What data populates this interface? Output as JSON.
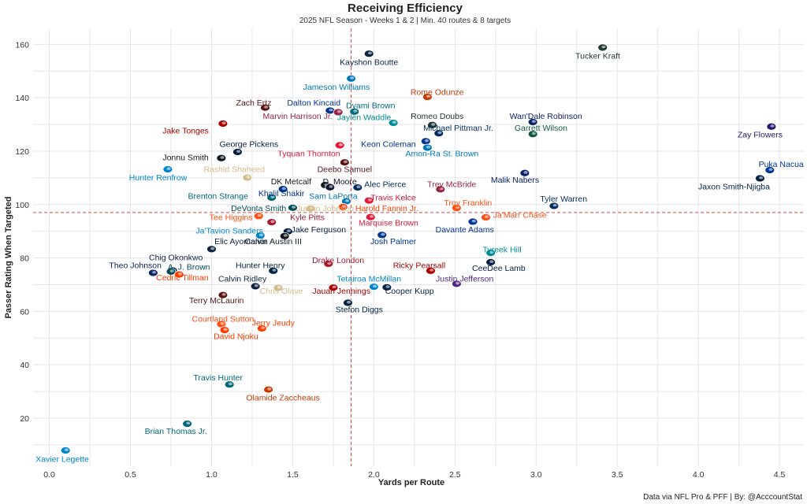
{
  "chart_data": {
    "type": "scatter",
    "title": "Receiving Efficiency",
    "subtitle": "2025 NFL Season - Weeks 1 & 2 | Min. 40 routes & 8 targets",
    "xlabel": "Yards per Route",
    "ylabel": "Passer Rating When Targeted",
    "caption": "Data via NFL Pro & PFF | By: @AcccountStat",
    "xlim": [
      -0.1,
      4.65
    ],
    "ylim": [
      2,
      166
    ],
    "xticks": [
      0.0,
      0.5,
      1.0,
      1.5,
      2.0,
      2.5,
      3.0,
      3.5,
      4.0,
      4.5
    ],
    "xtick_labels": [
      "0.0",
      "0.5",
      "1.0",
      "1.5",
      "2.0",
      "2.5",
      "3.0",
      "3.5",
      "4.0",
      "4.5"
    ],
    "yticks": [
      20,
      40,
      60,
      80,
      100,
      120,
      140,
      160
    ],
    "ytick_labels": [
      "20",
      "40",
      "60",
      "80",
      "100",
      "120",
      "140",
      "160"
    ],
    "grid": true,
    "reference_lines": {
      "x": 1.86,
      "y": 97
    },
    "points": [
      {
        "name": "Tucker Kraft",
        "x": 3.41,
        "y": 158.8,
        "color": "#203731",
        "label_x": 3.38,
        "label_y": 155.8
      },
      {
        "name": "Kayshon Boutte",
        "x": 1.97,
        "y": 156.5,
        "color": "#0c2340",
        "label_x": 1.97,
        "label_y": 153.5
      },
      {
        "name": "Jameson Williams",
        "x": 1.86,
        "y": 147.2,
        "color": "#0076b6",
        "label_x": 1.77,
        "label_y": 144.2
      },
      {
        "name": "Rome Odunze",
        "x": 2.33,
        "y": 140.3,
        "color": "#c83803",
        "label_x": 2.39,
        "label_y": 142.3
      },
      {
        "name": "Zach Ertz",
        "x": 1.33,
        "y": 136.3,
        "color": "#5a1414",
        "label_x": 1.26,
        "label_y": 138.3
      },
      {
        "name": "Dalton Kincaid",
        "x": 1.73,
        "y": 135.2,
        "color": "#00338d",
        "label_x": 1.63,
        "label_y": 138.3
      },
      {
        "name": "Dyami Brown",
        "x": 1.88,
        "y": 134.8,
        "color": "#006778",
        "label_x": 1.98,
        "label_y": 137.3
      },
      {
        "name": "Marvin Harrison Jr.",
        "x": 1.78,
        "y": 134.6,
        "color": "#97233f",
        "label_x": 1.53,
        "label_y": 133.3
      },
      {
        "name": "Jaylen Waddle",
        "x": 2.12,
        "y": 130.6,
        "color": "#008e97",
        "label_x": 1.94,
        "label_y": 132.8
      },
      {
        "name": "Romeo Doubs",
        "x": 2.36,
        "y": 129.8,
        "color": "#203731",
        "label_x": 2.39,
        "label_y": 133.3
      },
      {
        "name": "Wan'Dale Robinson",
        "x": 2.98,
        "y": 130.9,
        "color": "#0b2265",
        "label_x": 3.06,
        "label_y": 133.3
      },
      {
        "name": "Michael Pittman Jr.",
        "x": 2.4,
        "y": 126.7,
        "color": "#002c5f",
        "label_x": 2.52,
        "label_y": 128.8
      },
      {
        "name": "Garrett Wilson",
        "x": 2.98,
        "y": 126.4,
        "color": "#125740",
        "label_x": 3.03,
        "label_y": 128.8
      },
      {
        "name": "Jake Tonges",
        "x": 1.07,
        "y": 130.3,
        "color": "#aa0000",
        "label_x": 0.84,
        "label_y": 127.8
      },
      {
        "name": "Tyquan Thornton",
        "x": 1.79,
        "y": 122.2,
        "color": "#e31837",
        "label_x": 1.6,
        "label_y": 119.3
      },
      {
        "name": "Keon Coleman",
        "x": 2.32,
        "y": 123.7,
        "color": "#00338d",
        "label_x": 2.09,
        "label_y": 122.8
      },
      {
        "name": "Amon-Ra St. Brown",
        "x": 2.33,
        "y": 121.3,
        "color": "#0076b6",
        "label_x": 2.42,
        "label_y": 119.3
      },
      {
        "name": "Zay Flowers",
        "x": 4.45,
        "y": 129.2,
        "color": "#241773",
        "label_x": 4.38,
        "label_y": 126.3
      },
      {
        "name": "George Pickens",
        "x": 1.16,
        "y": 119.7,
        "color": "#041e42",
        "label_x": 1.23,
        "label_y": 122.8
      },
      {
        "name": "Jonnu Smith",
        "x": 1.06,
        "y": 117.4,
        "color": "#101820",
        "label_x": 0.84,
        "label_y": 117.8
      },
      {
        "name": "Hunter Renfrow",
        "x": 0.73,
        "y": 113.2,
        "color": "#0085ca",
        "label_x": 0.67,
        "label_y": 110.3
      },
      {
        "name": "Rashid Shaheed",
        "x": 1.22,
        "y": 110.1,
        "color": "#d3bc8d",
        "label_x": 1.14,
        "label_y": 113.3
      },
      {
        "name": "Deebo Samuel",
        "x": 1.82,
        "y": 115.8,
        "color": "#5a1414",
        "label_x": 1.82,
        "label_y": 113.3
      },
      {
        "name": "Puka Nacua",
        "x": 4.44,
        "y": 112.9,
        "color": "#003594",
        "label_x": 4.51,
        "label_y": 115.3
      },
      {
        "name": "Jaxon Smith-Njigba",
        "x": 4.38,
        "y": 109.8,
        "color": "#002244",
        "label_x": 4.22,
        "label_y": 106.8
      },
      {
        "name": "Malik Nabers",
        "x": 2.93,
        "y": 111.8,
        "color": "#0b2265",
        "label_x": 2.87,
        "label_y": 109.3
      },
      {
        "name": "DK Metcalf",
        "x": 1.7,
        "y": 107.3,
        "color": "#101820",
        "label_x": 1.49,
        "label_y": 108.8
      },
      {
        "name": "D. Moore",
        "x": 1.73,
        "y": 106.5,
        "color": "#0b162a",
        "label_x": 1.79,
        "label_y": 108.8
      },
      {
        "name": "Alec Pierce",
        "x": 1.9,
        "y": 106.4,
        "color": "#002c5f",
        "label_x": 2.07,
        "label_y": 107.8
      },
      {
        "name": "Trey McBride",
        "x": 2.41,
        "y": 105.7,
        "color": "#97233f",
        "label_x": 2.48,
        "label_y": 107.8
      },
      {
        "name": "Khalil Shakir",
        "x": 1.44,
        "y": 105.8,
        "color": "#00338d",
        "label_x": 1.43,
        "label_y": 104.3
      },
      {
        "name": "Brenton Strange",
        "x": 1.37,
        "y": 102.6,
        "color": "#006778",
        "label_x": 1.04,
        "label_y": 103.3
      },
      {
        "name": "Sam LaPorta",
        "x": 1.83,
        "y": 101.2,
        "color": "#0076b6",
        "label_x": 1.75,
        "label_y": 103.3
      },
      {
        "name": "Travis Kelce",
        "x": 1.97,
        "y": 101.5,
        "color": "#e31837",
        "label_x": 2.12,
        "label_y": 102.8
      },
      {
        "name": "Tyler Warren",
        "x": 3.11,
        "y": 99.5,
        "color": "#002c5f",
        "label_x": 3.17,
        "label_y": 102.3
      },
      {
        "name": "Troy Franklin",
        "x": 2.51,
        "y": 98.7,
        "color": "#fb4f14",
        "label_x": 2.58,
        "label_y": 100.8
      },
      {
        "name": "DeVonta Smith",
        "x": 1.5,
        "y": 98.8,
        "color": "#004c54",
        "label_x": 1.29,
        "label_y": 98.8
      },
      {
        "name": "Juwan Johnson",
        "x": 1.61,
        "y": 98.5,
        "color": "#d3bc8d",
        "label_x": 1.7,
        "label_y": 98.8
      },
      {
        "name": "Harold Fannin Jr.",
        "x": 1.81,
        "y": 99.1,
        "color": "#ff3c00",
        "label_x": 2.08,
        "label_y": 98.8
      },
      {
        "name": "Tee Higgins",
        "x": 1.29,
        "y": 95.7,
        "color": "#fb4f14",
        "label_x": 1.12,
        "label_y": 95.3
      },
      {
        "name": "Kyle Pitts",
        "x": 1.37,
        "y": 93.4,
        "color": "#a71930",
        "label_x": 1.59,
        "label_y": 95.3
      },
      {
        "name": "Ja'Marr Chase",
        "x": 2.69,
        "y": 95.2,
        "color": "#fb4f14",
        "label_x": 2.9,
        "label_y": 96.3
      },
      {
        "name": "Marquise Brown",
        "x": 1.98,
        "y": 95.3,
        "color": "#e31837",
        "label_x": 2.09,
        "label_y": 93.3
      },
      {
        "name": "Davante Adams",
        "x": 2.61,
        "y": 93.6,
        "color": "#003594",
        "label_x": 2.56,
        "label_y": 90.8
      },
      {
        "name": "Jake Ferguson",
        "x": 1.47,
        "y": 89.9,
        "color": "#041e42",
        "label_x": 1.66,
        "label_y": 90.8
      },
      {
        "name": "Ja'Tavion Sanders",
        "x": 1.3,
        "y": 88.4,
        "color": "#0085ca",
        "label_x": 1.11,
        "label_y": 90.3
      },
      {
        "name": "Calvin Austin III",
        "x": 1.45,
        "y": 88.2,
        "color": "#101820",
        "label_x": 1.38,
        "label_y": 86.3
      },
      {
        "name": "Elic Ayomanor",
        "x": 1.0,
        "y": 83.3,
        "color": "#0c2340",
        "label_x": 1.18,
        "label_y": 86.3
      },
      {
        "name": "Josh Palmer",
        "x": 2.05,
        "y": 88.6,
        "color": "#00338d",
        "label_x": 2.12,
        "label_y": 86.3
      },
      {
        "name": "Tyreek Hill",
        "x": 2.72,
        "y": 81.9,
        "color": "#008e97",
        "label_x": 2.79,
        "label_y": 83.3
      },
      {
        "name": "Chig Okonkwo",
        "x": 0.76,
        "y": 75.3,
        "color": "#0c2340",
        "label_x": 0.78,
        "label_y": 80.3
      },
      {
        "name": "Drake London",
        "x": 1.72,
        "y": 77.8,
        "color": "#a71930",
        "label_x": 1.78,
        "label_y": 79.3
      },
      {
        "name": "Hunter Henry",
        "x": 1.38,
        "y": 75.2,
        "color": "#002244",
        "label_x": 1.3,
        "label_y": 77.3
      },
      {
        "name": "Ricky Pearsall",
        "x": 2.35,
        "y": 75.2,
        "color": "#aa0000",
        "label_x": 2.28,
        "label_y": 77.3
      },
      {
        "name": "CeeDee Lamb",
        "x": 2.72,
        "y": 78.4,
        "color": "#041e42",
        "label_x": 2.77,
        "label_y": 76.3
      },
      {
        "name": "Theo Johnson",
        "x": 0.64,
        "y": 74.4,
        "color": "#0b2265",
        "label_x": 0.53,
        "label_y": 77.3
      },
      {
        "name": "A. J. Brown",
        "x": 0.75,
        "y": 74.9,
        "color": "#004c54",
        "label_x": 0.86,
        "label_y": 76.8
      },
      {
        "name": "Cedric Tillman",
        "x": 0.8,
        "y": 73.8,
        "color": "#ff3c00",
        "label_x": 0.82,
        "label_y": 72.8
      },
      {
        "name": "Calvin Ridley",
        "x": 1.27,
        "y": 69.4,
        "color": "#0c2340",
        "label_x": 1.19,
        "label_y": 72.3
      },
      {
        "name": "Tetairoa McMillan",
        "x": 2.0,
        "y": 69.2,
        "color": "#0085ca",
        "label_x": 1.97,
        "label_y": 72.3
      },
      {
        "name": "Justin Jefferson",
        "x": 2.51,
        "y": 70.3,
        "color": "#4f2683",
        "label_x": 2.56,
        "label_y": 72.3
      },
      {
        "name": "Chris Olave",
        "x": 1.41,
        "y": 68.8,
        "color": "#d3bc8d",
        "label_x": 1.43,
        "label_y": 67.8
      },
      {
        "name": "Jauan Jennings",
        "x": 1.75,
        "y": 68.9,
        "color": "#aa0000",
        "label_x": 1.8,
        "label_y": 67.8
      },
      {
        "name": "Cooper Kupp",
        "x": 2.08,
        "y": 69.0,
        "color": "#002244",
        "label_x": 2.22,
        "label_y": 67.8
      },
      {
        "name": "Terry McLaurin",
        "x": 1.07,
        "y": 66.1,
        "color": "#5a1414",
        "label_x": 1.03,
        "label_y": 64.3
      },
      {
        "name": "Stefon Diggs",
        "x": 1.84,
        "y": 63.2,
        "color": "#002244",
        "label_x": 1.91,
        "label_y": 60.8
      },
      {
        "name": "Courtland Sutton",
        "x": 1.06,
        "y": 55.2,
        "color": "#fb4f14",
        "label_x": 1.07,
        "label_y": 57.3
      },
      {
        "name": "Jerry Jeudy",
        "x": 1.31,
        "y": 53.6,
        "color": "#ff3c00",
        "label_x": 1.38,
        "label_y": 55.8
      },
      {
        "name": "David Njoku",
        "x": 1.08,
        "y": 53.0,
        "color": "#ff3c00",
        "label_x": 1.15,
        "label_y": 50.8
      },
      {
        "name": "Travis Hunter",
        "x": 1.11,
        "y": 32.6,
        "color": "#006778",
        "label_x": 1.04,
        "label_y": 35.3
      },
      {
        "name": "Olamide Zaccheaus",
        "x": 1.35,
        "y": 30.7,
        "color": "#c83803",
        "label_x": 1.44,
        "label_y": 27.8
      },
      {
        "name": "Brian Thomas Jr.",
        "x": 0.85,
        "y": 17.9,
        "color": "#006778",
        "label_x": 0.78,
        "label_y": 15.3
      },
      {
        "name": "Xavier Legette",
        "x": 0.1,
        "y": 7.9,
        "color": "#0085ca",
        "label_x": 0.08,
        "label_y": 4.8
      }
    ]
  }
}
